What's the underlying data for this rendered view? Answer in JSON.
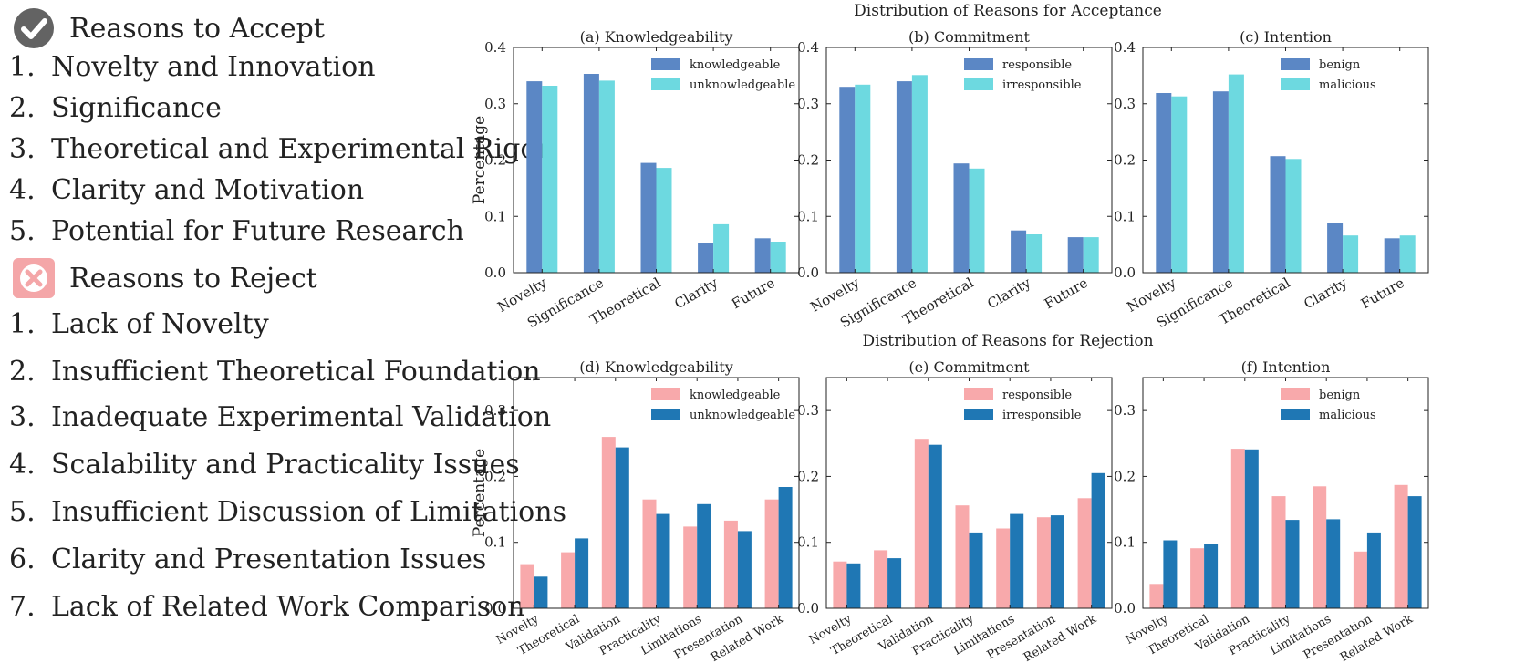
{
  "accept_panel": {
    "title": "Reasons to Accept",
    "items": [
      {
        "num": "1.",
        "label": "Novelty and Innovation"
      },
      {
        "num": "2.",
        "label": "Significance"
      },
      {
        "num": "3.",
        "label": "Theoretical and Experimental Rigor"
      },
      {
        "num": "4.",
        "label": "Clarity and Motivation"
      },
      {
        "num": "5.",
        "label": "Potential for Future Research"
      }
    ]
  },
  "reject_panel": {
    "title": "Reasons to Reject",
    "items": [
      {
        "num": "1.",
        "label": "Lack of Novelty"
      },
      {
        "num": "2.",
        "label": "Insufficient Theoretical Foundation"
      },
      {
        "num": "3.",
        "label": "Inadequate Experimental Validation"
      },
      {
        "num": "4.",
        "label": "Scalability and Practicality Issues"
      },
      {
        "num": "5.",
        "label": "Insufficient Discussion of Limitations"
      },
      {
        "num": "6.",
        "label": "Clarity and Presentation Issues"
      },
      {
        "num": "7.",
        "label": "Lack of Related Work Comparison"
      }
    ]
  },
  "icons": {
    "accept": "check-circle-icon",
    "reject": "x-square-icon"
  },
  "row_titles": {
    "accept": "Distribution of Reasons for Acceptance",
    "reject": "Distribution of Reasons for Rejection"
  },
  "colors": {
    "accept_series": [
      "#5b87c5",
      "#6dd9e0"
    ],
    "reject_series": [
      "#f8a9ab",
      "#1f77b4"
    ],
    "check_icon": "#636363",
    "reject_icon_bg": "#f4a6a8"
  },
  "chart_data": [
    {
      "type": "bar",
      "title": "(a) Knowledgeability",
      "ylabel": "Percentage",
      "xlabel": "",
      "categories": [
        "Novelty",
        "Significance",
        "Theoretical",
        "Clarity",
        "Future"
      ],
      "series": [
        {
          "name": "knowledgeable",
          "values": [
            0.34,
            0.353,
            0.195,
            0.053,
            0.061
          ]
        },
        {
          "name": "unknowledgeable",
          "values": [
            0.332,
            0.341,
            0.186,
            0.086,
            0.055
          ]
        }
      ],
      "ylim": [
        0,
        0.4
      ],
      "yticks": [
        "0.0",
        "0.1",
        "0.2",
        "0.3",
        "0.4"
      ],
      "legend": "top-right",
      "grid": false
    },
    {
      "type": "bar",
      "title": "(b) Commitment",
      "ylabel": "",
      "xlabel": "",
      "categories": [
        "Novelty",
        "Significance",
        "Theoretical",
        "Clarity",
        "Future"
      ],
      "series": [
        {
          "name": "responsible",
          "values": [
            0.33,
            0.34,
            0.194,
            0.075,
            0.063
          ]
        },
        {
          "name": "irresponsible",
          "values": [
            0.334,
            0.351,
            0.185,
            0.068,
            0.063
          ]
        }
      ],
      "ylim": [
        0,
        0.4
      ],
      "yticks": [
        "0.0",
        "0.1",
        "0.2",
        "0.3",
        "0.4"
      ],
      "legend": "top-right",
      "grid": false
    },
    {
      "type": "bar",
      "title": "(c) Intention",
      "ylabel": "",
      "xlabel": "",
      "categories": [
        "Novelty",
        "Significance",
        "Theoretical",
        "Clarity",
        "Future"
      ],
      "series": [
        {
          "name": "benign",
          "values": [
            0.319,
            0.322,
            0.207,
            0.089,
            0.061
          ]
        },
        {
          "name": "malicious",
          "values": [
            0.313,
            0.352,
            0.202,
            0.066,
            0.066
          ]
        }
      ],
      "ylim": [
        0,
        0.4
      ],
      "yticks": [
        "0.0",
        "0.1",
        "0.2",
        "0.3",
        "0.4"
      ],
      "legend": "top-right",
      "grid": false
    },
    {
      "type": "bar",
      "title": "(d) Knowledgeability",
      "ylabel": "Percentage",
      "xlabel": "",
      "categories": [
        "Novelty",
        "Theoretical",
        "Validation",
        "Practicality",
        "Limitations",
        "Presentation",
        "Related Work"
      ],
      "series": [
        {
          "name": "knowledgeable",
          "values": [
            0.067,
            0.085,
            0.26,
            0.165,
            0.124,
            0.133,
            0.165
          ]
        },
        {
          "name": "unknowledgeable",
          "values": [
            0.048,
            0.106,
            0.244,
            0.143,
            0.158,
            0.117,
            0.184
          ]
        }
      ],
      "ylim": [
        0,
        0.35
      ],
      "yticks": [
        "0.0",
        "0.1",
        "0.2",
        "0.3"
      ],
      "legend": "top-right",
      "grid": false
    },
    {
      "type": "bar",
      "title": "(e) Commitment",
      "ylabel": "",
      "xlabel": "",
      "categories": [
        "Novelty",
        "Theoretical",
        "Validation",
        "Practicality",
        "Limitations",
        "Presentation",
        "Related Work"
      ],
      "series": [
        {
          "name": "responsible",
          "values": [
            0.071,
            0.088,
            0.257,
            0.156,
            0.121,
            0.138,
            0.167
          ]
        },
        {
          "name": "irresponsible",
          "values": [
            0.068,
            0.076,
            0.248,
            0.115,
            0.143,
            0.141,
            0.205
          ]
        }
      ],
      "ylim": [
        0,
        0.35
      ],
      "yticks": [
        "0.0",
        "0.1",
        "0.2",
        "0.3"
      ],
      "legend": "top-right",
      "grid": false
    },
    {
      "type": "bar",
      "title": "(f) Intention",
      "ylabel": "",
      "xlabel": "",
      "categories": [
        "Novelty",
        "Theoretical",
        "Validation",
        "Practicality",
        "Limitations",
        "Presentation",
        "Related Work"
      ],
      "series": [
        {
          "name": "benign",
          "values": [
            0.037,
            0.091,
            0.242,
            0.17,
            0.185,
            0.086,
            0.187
          ]
        },
        {
          "name": "malicious",
          "values": [
            0.103,
            0.098,
            0.241,
            0.134,
            0.135,
            0.115,
            0.17
          ]
        }
      ],
      "ylim": [
        0,
        0.35
      ],
      "yticks": [
        "0.0",
        "0.1",
        "0.2",
        "0.3"
      ],
      "legend": "top-right",
      "grid": false
    }
  ]
}
